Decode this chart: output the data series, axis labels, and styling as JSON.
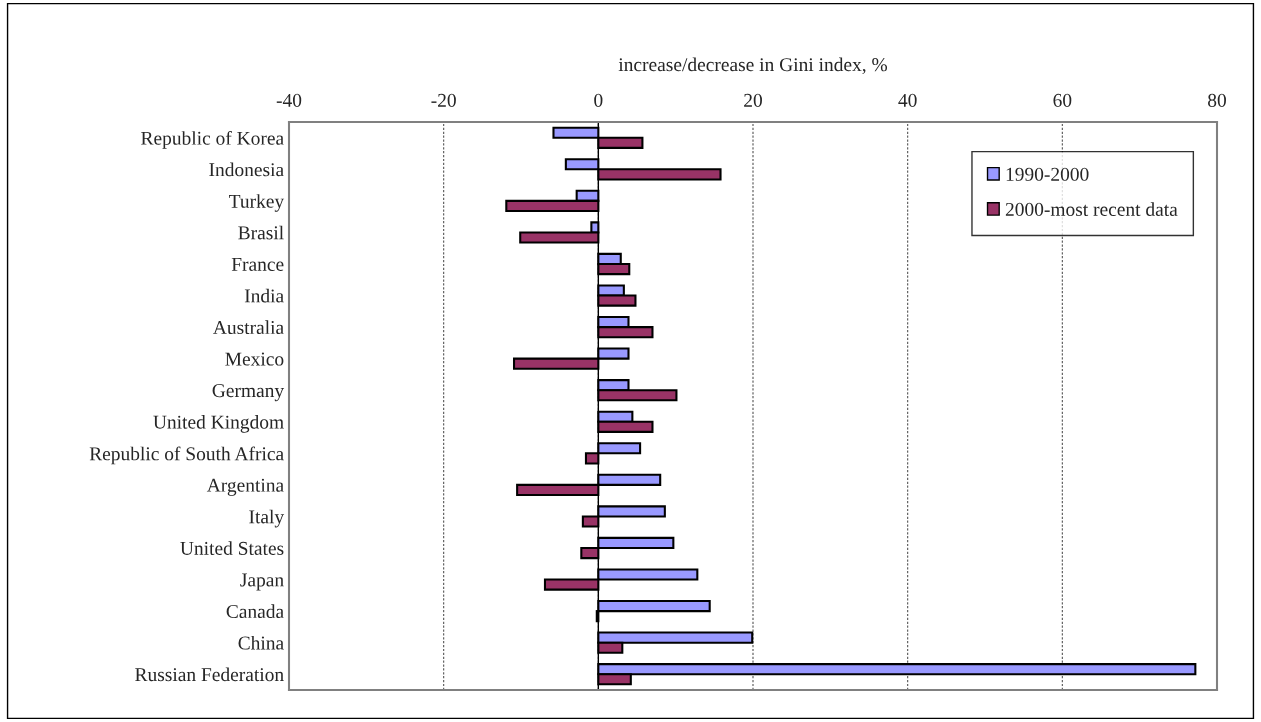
{
  "chart_data": {
    "type": "bar",
    "orientation": "horizontal",
    "xlabel": "increase/decrease in Gini index, %",
    "categories": [
      "Republic of Korea",
      "Indonesia",
      "Turkey",
      "Brasil",
      "France",
      "India",
      "Australia",
      "Mexico",
      "Germany",
      "United Kingdom",
      "Republic of South Africa",
      "Argentina",
      "Italy",
      "United States",
      "Japan",
      "Canada",
      "China",
      "Russian Federation"
    ],
    "series": [
      {
        "name": "1990-2000",
        "color": "#9999ff",
        "values": [
          -5.8,
          -4.2,
          -2.8,
          -0.9,
          2.9,
          3.3,
          3.9,
          3.9,
          3.9,
          4.4,
          5.4,
          8.0,
          8.6,
          9.7,
          12.8,
          14.4,
          19.9,
          77.2
        ]
      },
      {
        "name": "2000-most recent data",
        "color": "#993366",
        "values": [
          5.7,
          15.8,
          -11.9,
          -10.1,
          4.0,
          4.8,
          7.0,
          -10.9,
          10.1,
          7.0,
          -1.6,
          -10.5,
          -2.0,
          -2.2,
          -6.9,
          -0.2,
          3.1,
          4.2
        ]
      }
    ],
    "xlim": [
      -40,
      80
    ],
    "xticks": [
      -40,
      -20,
      0,
      20,
      40,
      60,
      80
    ],
    "grid": "x",
    "legend": "top right"
  }
}
